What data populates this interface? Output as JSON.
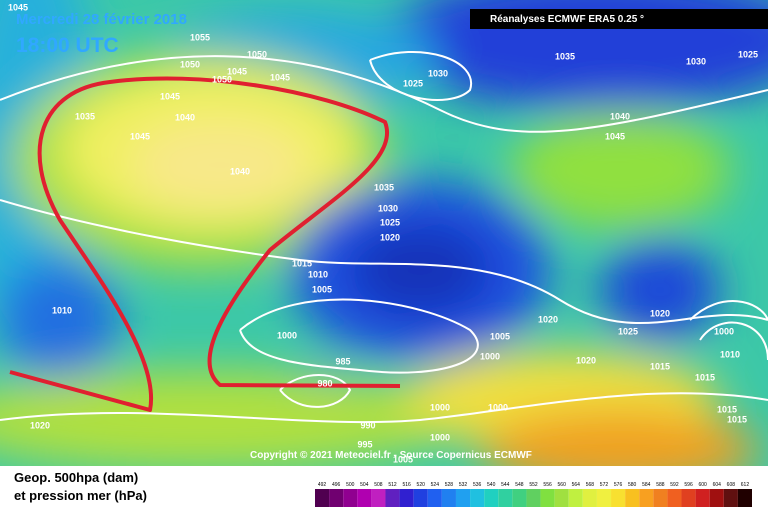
{
  "header": {
    "date": "Mercredi 28 février 2018",
    "time": "18:00 UTC",
    "source": "Réanalyses ECMWF ERA5 0.25 °"
  },
  "copyright": "Copyright © 2021 Meteociel.fr - Source Copernicus ECMWF",
  "legend": {
    "line1": "Geop. 500hpa (dam)",
    "line2": "et pression mer (hPa)",
    "scale": [
      492,
      496,
      500,
      504,
      508,
      512,
      516,
      520,
      524,
      528,
      532,
      536,
      540,
      544,
      548,
      552,
      556,
      560,
      564,
      568,
      572,
      576,
      580,
      584,
      588,
      592,
      596,
      600,
      604,
      608,
      612
    ]
  },
  "isobar_labels": [
    1045,
    1055,
    1050,
    1050,
    1045,
    1050,
    1045,
    1045,
    1035,
    1040,
    1045,
    1040,
    1030,
    1025,
    1035,
    1030,
    1025,
    1040,
    1045,
    1035,
    1030,
    1025,
    1020,
    1015,
    1010,
    1005,
    1010,
    1000,
    1005,
    1020,
    1025,
    1020,
    1000,
    1010,
    1000,
    985,
    980,
    1020,
    1015,
    1015,
    990,
    1000,
    1000,
    1015,
    1015,
    1020,
    995,
    1000,
    1005,
    1020
  ]
}
